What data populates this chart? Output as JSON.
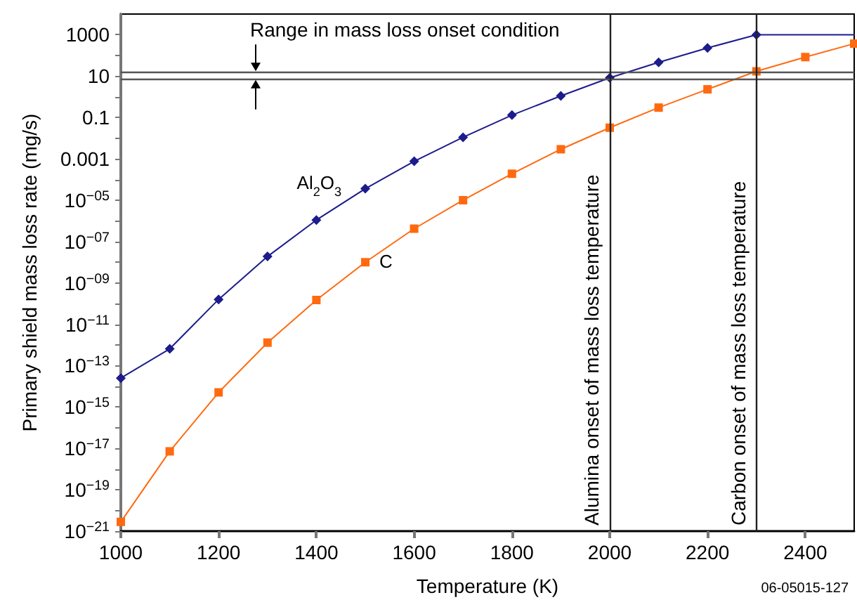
{
  "chart_data": {
    "type": "line",
    "xlabel": "Temperature (K)",
    "ylabel": "Primary shield mass loss rate (mg/s)",
    "x": [
      1000,
      1100,
      1200,
      1300,
      1400,
      1500,
      1600,
      1700,
      1800,
      1900,
      2000,
      2100,
      2200,
      2300,
      2500
    ],
    "series": [
      {
        "name": "Al$_{2}$O$_{3}$",
        "color": "#1c1c8c",
        "marker": "diamond",
        "values": [
          2.5e-14,
          6.5e-13,
          1.6e-10,
          1.9e-08,
          1.1e-06,
          3.6e-05,
          0.00076,
          0.011,
          0.13,
          1.1,
          8.3,
          46,
          230,
          1000,
          1000
        ]
      },
      {
        "name": "C",
        "color": "#ff6a10",
        "marker": "square",
        "x": [
          1000,
          1100,
          1200,
          1300,
          1400,
          1500,
          1600,
          1700,
          1800,
          1900,
          2000,
          2100,
          2200,
          2300,
          2400,
          2500
        ],
        "values": [
          2.8e-21,
          7.2e-18,
          5.1e-15,
          1.3e-12,
          1.5e-10,
          1e-08,
          4.2e-07,
          1e-05,
          0.00019,
          0.0029,
          0.032,
          0.3,
          2.3,
          17,
          83,
          370
        ]
      }
    ],
    "log": "y",
    "xlim": [
      1000,
      2500
    ],
    "xticks": [
      1000,
      1200,
      1400,
      1600,
      1800,
      2000,
      2200,
      2400
    ],
    "ylim": [
      1e-21,
      10000
    ],
    "yticks": [
      {
        "value": 1e-21,
        "label": "10$^{−21}$"
      },
      {
        "value": 1e-20,
        "label": null
      },
      {
        "value": 1e-19,
        "label": "10$^{−19}$"
      },
      {
        "value": 1e-18,
        "label": null
      },
      {
        "value": 1e-17,
        "label": "10$^{−17}$"
      },
      {
        "value": 1e-16,
        "label": null
      },
      {
        "value": 1e-15,
        "label": "10$^{−15}$"
      },
      {
        "value": 1e-14,
        "label": null
      },
      {
        "value": 1e-13,
        "label": "10$^{−13}$"
      },
      {
        "value": 1e-12,
        "label": null
      },
      {
        "value": 1e-11,
        "label": "10$^{−11}$"
      },
      {
        "value": 1e-10,
        "label": null
      },
      {
        "value": 1e-09,
        "label": "10$^{−09}$"
      },
      {
        "value": 1e-08,
        "label": null
      },
      {
        "value": 1e-07,
        "label": "10$^{−07}$"
      },
      {
        "value": 1e-06,
        "label": null
      },
      {
        "value": 1e-05,
        "label": "10$^{−05}$"
      },
      {
        "value": 0.0001,
        "label": null
      },
      0.001,
      {
        "value": 0.01,
        "label": null
      },
      0.1,
      {
        "value": 1,
        "label": null
      },
      10,
      {
        "value": 100,
        "label": null
      },
      1000
    ],
    "ref_lines": [
      {
        "axis": "y",
        "value": 15,
        "label": null,
        "color": "#555555"
      },
      {
        "axis": "y",
        "value": 7.6,
        "label": null,
        "color": "#555555"
      },
      {
        "axis": "x",
        "value": 2000,
        "label": "Alumina onset of mass loss temperature",
        "color": "#222222"
      },
      {
        "axis": "x",
        "value": 2300,
        "label": "Carbon onset of mass loss temperature",
        "color": "#222222"
      }
    ],
    "annotations": [
      "Range in mass loss onset condition",
      "06-05015-127"
    ],
    "legend": false
  }
}
